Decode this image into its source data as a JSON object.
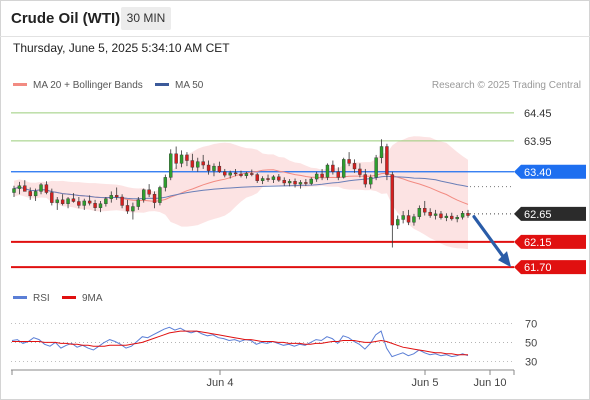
{
  "header": {
    "title": "Crude Oil (WTI)",
    "interval": "30 MIN"
  },
  "timestamp": "Thursday, June 5, 2025 5:34:10 AM CET",
  "legend": {
    "items": [
      {
        "label": "MA 20 + Bollinger Bands",
        "color": "#f28b82"
      },
      {
        "label": "MA 50",
        "color": "#3c5a9a"
      }
    ]
  },
  "credit": "Research © 2025 Trading Central",
  "rsi_legend": {
    "items": [
      {
        "label": "RSI",
        "color": "#5b7fd6"
      },
      {
        "label": "9MA",
        "color": "#e01010"
      }
    ]
  },
  "colors": {
    "up": "#2e9e2e",
    "down": "#d32020",
    "accent_blue": "#1e6ff0",
    "pivot_red": "#e01010",
    "resistance_green": "#9acd7a",
    "forecast_arrow": "#2a5ca8"
  },
  "chart_data": [
    {
      "type": "candlestick",
      "title": "Crude Oil (WTI)",
      "interval": "30 MIN",
      "ylim": [
        61.4,
        64.75
      ],
      "x_tick_labels": [
        "Jun 4",
        "Jun 5",
        "Jun 10"
      ],
      "levels": [
        {
          "value": 64.45,
          "label": "64.45",
          "kind": "resistance"
        },
        {
          "value": 63.95,
          "label": "63.95",
          "kind": "resistance"
        },
        {
          "value": 63.4,
          "label": "63.40",
          "kind": "pivot"
        },
        {
          "value": 62.65,
          "label": "62.65",
          "kind": "last"
        },
        {
          "value": 62.15,
          "label": "62.15",
          "kind": "support"
        },
        {
          "value": 61.7,
          "label": "61.70",
          "kind": "support"
        }
      ],
      "forecast": {
        "from": 62.6,
        "to": 61.7
      },
      "candles": [
        [
          63.03,
          63.15,
          62.95,
          63.1
        ],
        [
          63.1,
          63.22,
          63.0,
          63.15
        ],
        [
          63.15,
          63.25,
          63.05,
          63.05
        ],
        [
          63.05,
          63.12,
          62.9,
          62.97
        ],
        [
          62.97,
          63.1,
          62.88,
          63.05
        ],
        [
          63.05,
          63.2,
          63.0,
          63.17
        ],
        [
          63.17,
          63.23,
          63.0,
          63.03
        ],
        [
          63.03,
          63.1,
          62.8,
          62.85
        ],
        [
          62.85,
          62.95,
          62.72,
          62.9
        ],
        [
          62.9,
          63.0,
          62.8,
          62.83
        ],
        [
          62.83,
          62.95,
          62.75,
          62.92
        ],
        [
          62.92,
          63.02,
          62.85,
          62.87
        ],
        [
          62.87,
          62.95,
          62.75,
          62.8
        ],
        [
          62.8,
          62.92,
          62.72,
          62.88
        ],
        [
          62.88,
          62.98,
          62.8,
          62.84
        ],
        [
          62.84,
          62.9,
          62.7,
          62.76
        ],
        [
          62.76,
          62.88,
          62.68,
          62.83
        ],
        [
          62.83,
          62.95,
          62.78,
          62.92
        ],
        [
          62.92,
          63.05,
          62.85,
          62.98
        ],
        [
          62.98,
          63.12,
          62.9,
          62.95
        ],
        [
          62.95,
          63.0,
          62.75,
          62.8
        ],
        [
          62.8,
          62.9,
          62.65,
          62.7
        ],
        [
          62.7,
          62.85,
          62.55,
          62.78
        ],
        [
          62.78,
          62.95,
          62.72,
          62.9
        ],
        [
          62.9,
          63.1,
          62.85,
          63.08
        ],
        [
          63.08,
          63.18,
          62.95,
          63.0
        ],
        [
          63.0,
          63.05,
          62.75,
          62.85
        ],
        [
          62.85,
          63.15,
          62.8,
          63.12
        ],
        [
          63.12,
          63.35,
          63.05,
          63.3
        ],
        [
          63.3,
          63.8,
          63.25,
          63.72
        ],
        [
          63.72,
          63.85,
          63.45,
          63.55
        ],
        [
          63.55,
          63.78,
          63.48,
          63.7
        ],
        [
          63.7,
          63.75,
          63.5,
          63.6
        ],
        [
          63.6,
          63.72,
          63.42,
          63.48
        ],
        [
          63.48,
          63.65,
          63.4,
          63.58
        ],
        [
          63.58,
          63.7,
          63.45,
          63.52
        ],
        [
          63.52,
          63.6,
          63.35,
          63.42
        ],
        [
          63.42,
          63.55,
          63.32,
          63.5
        ],
        [
          63.5,
          63.58,
          63.38,
          63.4
        ],
        [
          63.4,
          63.45,
          63.3,
          63.34
        ],
        [
          63.34,
          63.42,
          63.28,
          63.38
        ],
        [
          63.38,
          63.45,
          63.32,
          63.36
        ],
        [
          63.36,
          63.42,
          63.3,
          63.33
        ],
        [
          63.33,
          63.4,
          63.28,
          63.37
        ],
        [
          63.37,
          63.44,
          63.32,
          63.35
        ],
        [
          63.35,
          63.38,
          63.2,
          63.24
        ],
        [
          63.24,
          63.32,
          63.18,
          63.28
        ],
        [
          63.28,
          63.35,
          63.22,
          63.26
        ],
        [
          63.26,
          63.34,
          63.2,
          63.31
        ],
        [
          63.31,
          63.36,
          63.22,
          63.25
        ],
        [
          63.25,
          63.3,
          63.15,
          63.2
        ],
        [
          63.2,
          63.27,
          63.14,
          63.23
        ],
        [
          63.23,
          63.28,
          63.12,
          63.18
        ],
        [
          63.18,
          63.25,
          63.1,
          63.21
        ],
        [
          63.21,
          63.27,
          63.15,
          63.19
        ],
        [
          63.19,
          63.3,
          63.16,
          63.27
        ],
        [
          63.27,
          63.4,
          63.22,
          63.36
        ],
        [
          63.36,
          63.45,
          63.25,
          63.3
        ],
        [
          63.3,
          63.55,
          63.25,
          63.52
        ],
        [
          63.52,
          63.6,
          63.35,
          63.4
        ],
        [
          63.4,
          63.48,
          63.25,
          63.3
        ],
        [
          63.3,
          63.65,
          63.28,
          63.62
        ],
        [
          63.62,
          63.75,
          63.5,
          63.55
        ],
        [
          63.55,
          63.62,
          63.38,
          63.45
        ],
        [
          63.45,
          63.55,
          63.3,
          63.35
        ],
        [
          63.35,
          63.45,
          63.12,
          63.18
        ],
        [
          63.18,
          63.35,
          63.1,
          63.3
        ],
        [
          63.3,
          63.7,
          63.25,
          63.65
        ],
        [
          63.65,
          63.98,
          63.55,
          63.85
        ],
        [
          63.85,
          63.9,
          63.25,
          63.35
        ],
        [
          63.35,
          63.4,
          62.05,
          62.45
        ],
        [
          62.45,
          62.62,
          62.38,
          62.55
        ],
        [
          62.55,
          62.7,
          62.48,
          62.62
        ],
        [
          62.62,
          62.72,
          62.45,
          62.5
        ],
        [
          62.5,
          62.65,
          62.44,
          62.6
        ],
        [
          62.6,
          62.8,
          62.55,
          62.75
        ],
        [
          62.75,
          62.88,
          62.62,
          62.68
        ],
        [
          62.68,
          62.75,
          62.58,
          62.62
        ],
        [
          62.62,
          62.72,
          62.55,
          62.65
        ],
        [
          62.65,
          62.7,
          62.55,
          62.58
        ],
        [
          62.58,
          62.66,
          62.52,
          62.61
        ],
        [
          62.61,
          62.67,
          62.53,
          62.56
        ],
        [
          62.56,
          62.63,
          62.5,
          62.59
        ],
        [
          62.59,
          62.7,
          62.55,
          62.66
        ],
        [
          62.66,
          62.72,
          62.58,
          62.62
        ]
      ]
    },
    {
      "type": "line",
      "title": "RSI",
      "ylim": [
        23,
        80
      ],
      "y_ticks": [
        70,
        50,
        30
      ],
      "series": [
        {
          "name": "RSI",
          "values": [
            52,
            53,
            49,
            51,
            55,
            53,
            48,
            46,
            50,
            44,
            47,
            49,
            45,
            47,
            44,
            42,
            46,
            50,
            53,
            51,
            48,
            44,
            46,
            51,
            56,
            55,
            58,
            61,
            64,
            66,
            63,
            65,
            62,
            60,
            62,
            59,
            57,
            58,
            55,
            54,
            52,
            53,
            51,
            53,
            52,
            48,
            50,
            49,
            51,
            49,
            47,
            48,
            46,
            48,
            47,
            50,
            53,
            52,
            56,
            54,
            49,
            57,
            55,
            51,
            48,
            43,
            49,
            58,
            62,
            44,
            35,
            37,
            39,
            36,
            38,
            42,
            39,
            37,
            38,
            36,
            37,
            35,
            36,
            38,
            36
          ]
        },
        {
          "name": "9MA",
          "values": [
            51,
            51,
            51,
            51,
            51,
            51,
            50,
            50,
            50,
            49,
            49,
            48,
            48,
            47,
            47,
            46,
            46,
            46,
            47,
            47,
            47,
            47,
            48,
            49,
            50,
            52,
            54,
            56,
            58,
            60,
            61,
            62,
            62,
            62,
            62,
            61,
            60,
            59,
            58,
            57,
            56,
            55,
            54,
            53,
            53,
            52,
            51,
            51,
            51,
            50,
            50,
            49,
            49,
            49,
            48,
            48,
            49,
            49,
            50,
            51,
            51,
            52,
            52,
            52,
            51,
            50,
            50,
            51,
            52,
            51,
            49,
            47,
            45,
            44,
            43,
            42,
            41,
            40,
            39,
            39,
            38,
            38,
            37,
            37,
            37
          ]
        }
      ]
    }
  ]
}
